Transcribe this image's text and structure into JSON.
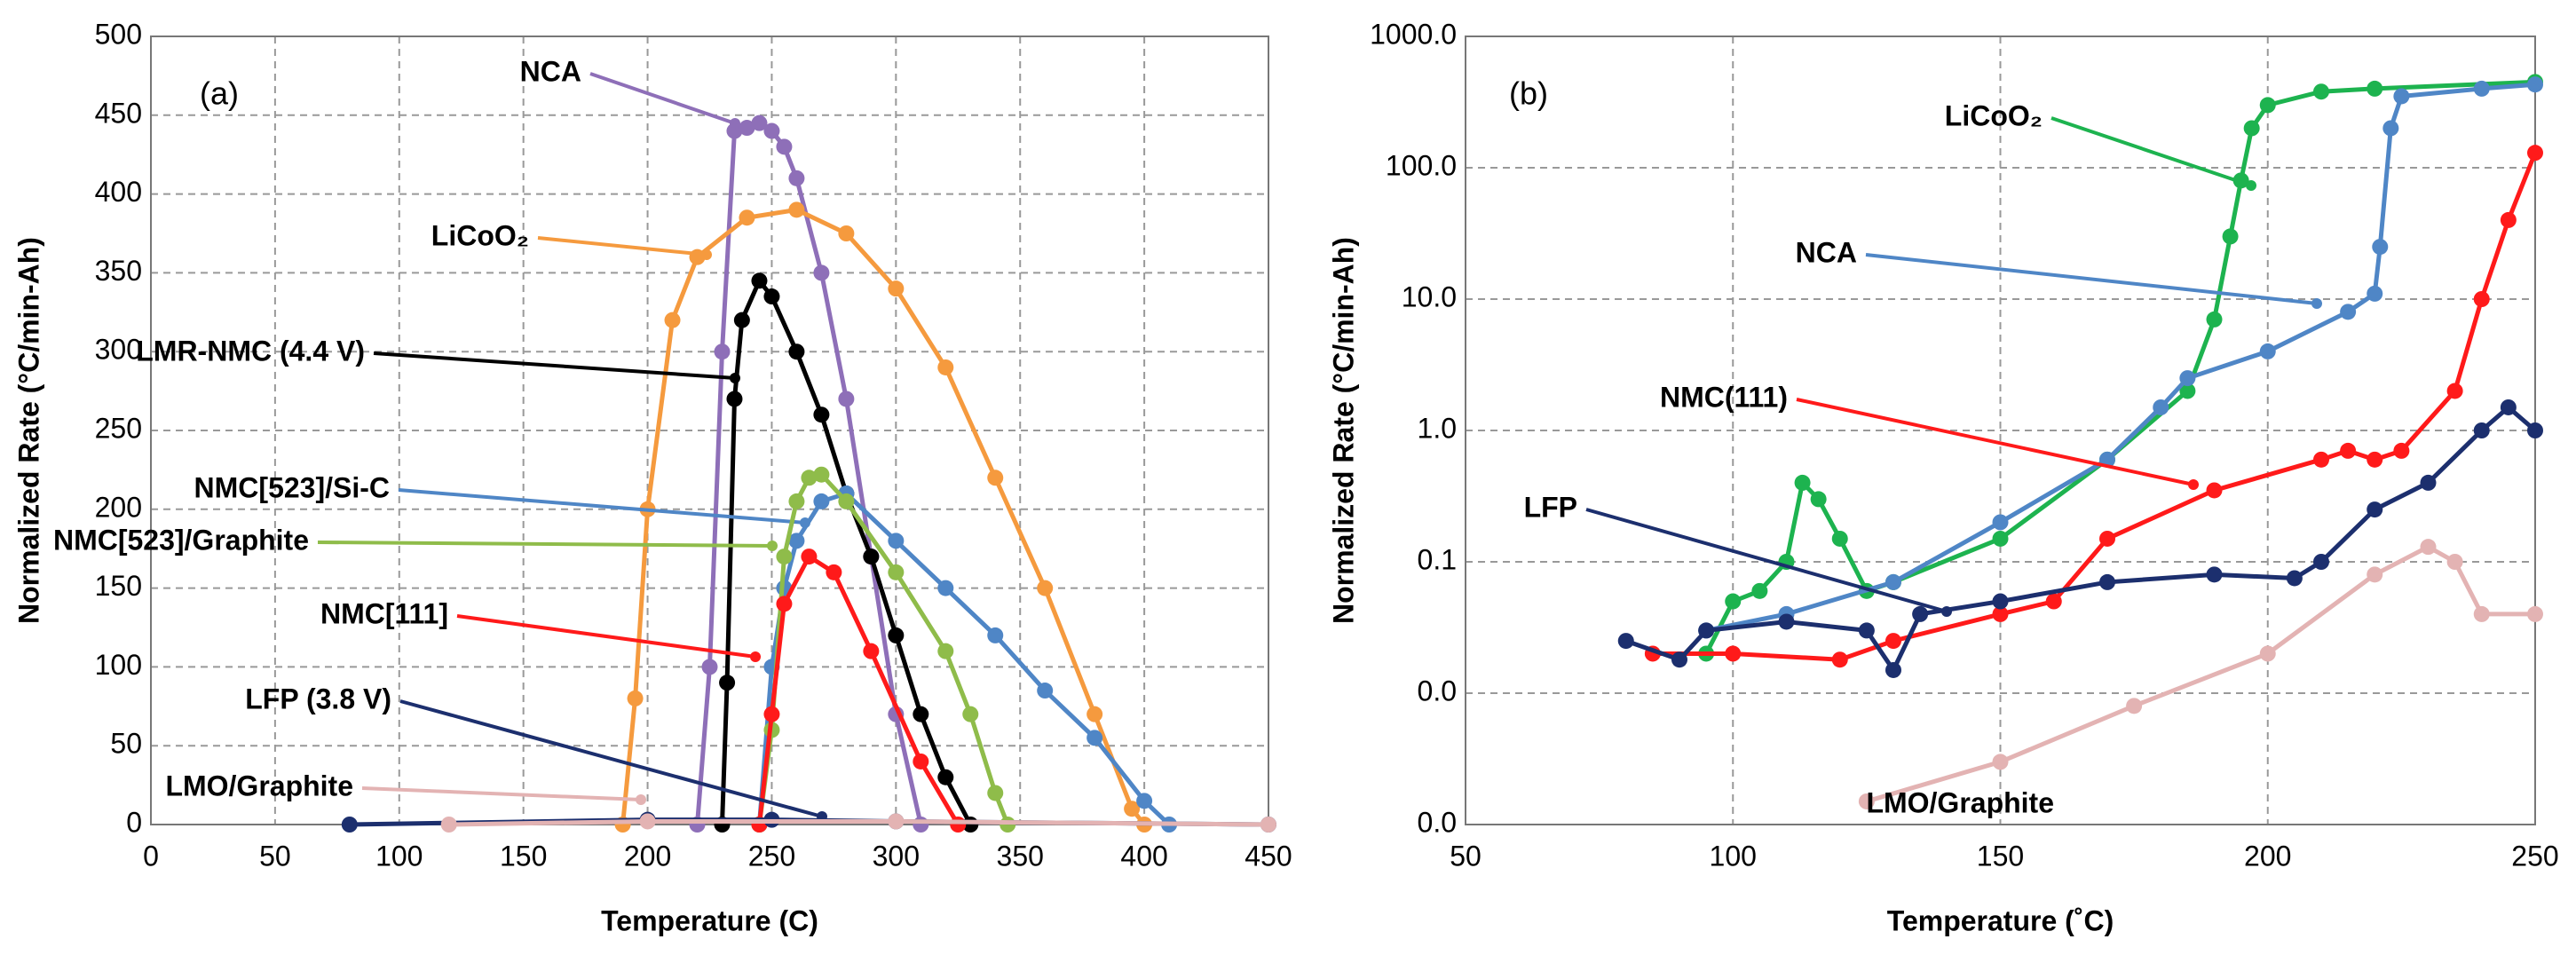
{
  "chart_data": [
    {
      "type": "line",
      "panel_label": "(a)",
      "x_label": "Temperature (C)",
      "y_label": "Normalized Rate (°C/min-Ah)",
      "xlim": [
        0,
        450
      ],
      "xticks": [
        0,
        50,
        100,
        150,
        200,
        250,
        300,
        350,
        400,
        450
      ],
      "ylim": [
        0,
        500
      ],
      "yticks": [
        0,
        50,
        100,
        150,
        200,
        250,
        300,
        350,
        400,
        450,
        500
      ],
      "grid": true,
      "log_y": false,
      "series": [
        {
          "name": "NCA",
          "color": "#8e6fb8",
          "x": [
            220,
            225,
            230,
            235,
            240,
            245,
            250,
            255,
            260,
            270,
            280,
            290,
            300,
            310
          ],
          "values": [
            0,
            100,
            300,
            440,
            442,
            445,
            440,
            430,
            410,
            350,
            270,
            170,
            70,
            0
          ]
        },
        {
          "name": "LiCoO₂",
          "color": "#f59a3e",
          "x": [
            190,
            195,
            200,
            210,
            220,
            240,
            260,
            280,
            300,
            320,
            340,
            360,
            380,
            395,
            400
          ],
          "values": [
            0,
            80,
            200,
            320,
            360,
            385,
            390,
            375,
            340,
            290,
            220,
            150,
            70,
            10,
            0
          ]
        },
        {
          "name": "LMR-NMC (4.4 V)",
          "color": "#000000",
          "x": [
            230,
            232,
            235,
            238,
            245,
            250,
            260,
            270,
            280,
            290,
            300,
            310,
            320,
            330
          ],
          "values": [
            0,
            90,
            270,
            320,
            345,
            335,
            300,
            260,
            210,
            170,
            120,
            70,
            30,
            0
          ]
        },
        {
          "name": "NMC[523]/Si-C",
          "color": "#4f86c6",
          "x": [
            245,
            250,
            255,
            260,
            270,
            280,
            300,
            320,
            340,
            360,
            380,
            400,
            410
          ],
          "values": [
            0,
            100,
            150,
            180,
            205,
            210,
            180,
            150,
            120,
            85,
            55,
            15,
            0
          ]
        },
        {
          "name": "NMC[523]/Graphite",
          "color": "#8fbc4a",
          "x": [
            245,
            250,
            255,
            260,
            265,
            270,
            280,
            300,
            320,
            330,
            340,
            345
          ],
          "values": [
            0,
            60,
            170,
            205,
            220,
            222,
            205,
            160,
            110,
            70,
            20,
            0
          ]
        },
        {
          "name": "NMC[111]",
          "color": "#ff1a1a",
          "x": [
            245,
            250,
            255,
            265,
            275,
            290,
            310,
            325
          ],
          "values": [
            0,
            70,
            140,
            170,
            160,
            110,
            40,
            0
          ]
        },
        {
          "name": "LFP (3.8 V)",
          "color": "#1c2f6e",
          "x": [
            80,
            200,
            250,
            300,
            450
          ],
          "values": [
            0,
            3,
            3,
            2,
            0
          ]
        },
        {
          "name": "LMO/Graphite",
          "color": "#e3b3b3",
          "x": [
            120,
            200,
            300,
            450
          ],
          "values": [
            0,
            2,
            2,
            0
          ]
        }
      ]
    },
    {
      "type": "line",
      "panel_label": "(b)",
      "x_label": "Temperature (˚C)",
      "y_label": "Normalized Rate (°C/min-Ah)",
      "xlim": [
        50,
        250
      ],
      "xticks": [
        50,
        100,
        150,
        200,
        250
      ],
      "ylim": [
        0.001,
        1000
      ],
      "yticks": [
        {
          "value": 0.001,
          "label": "0.0"
        },
        {
          "value": 0.01,
          "label": "0.0"
        },
        {
          "value": 0.1,
          "label": "0.1"
        },
        {
          "value": 1,
          "label": "1.0"
        },
        {
          "value": 10,
          "label": "10.0"
        },
        {
          "value": 100,
          "label": "100.0"
        },
        {
          "value": 1000,
          "label": "1000.0"
        }
      ],
      "grid": true,
      "log_y": true,
      "series": [
        {
          "name": "LiCoO₂",
          "color": "#1db34f",
          "x": [
            95,
            100,
            105,
            110,
            113,
            116,
            120,
            125,
            130,
            150,
            170,
            185,
            190,
            193,
            195,
            197,
            200,
            210,
            220,
            250
          ],
          "values": [
            0.02,
            0.05,
            0.06,
            0.1,
            0.4,
            0.3,
            0.15,
            0.06,
            0.07,
            0.15,
            0.6,
            2,
            7,
            30,
            80,
            200,
            300,
            380,
            400,
            450
          ]
        },
        {
          "name": "NCA",
          "color": "#4f86c6",
          "x": [
            95,
            110,
            130,
            150,
            170,
            180,
            185,
            200,
            215,
            220,
            221,
            223,
            225,
            240,
            250
          ],
          "values": [
            0.03,
            0.04,
            0.07,
            0.2,
            0.6,
            1.5,
            2.5,
            4,
            8,
            11,
            25,
            200,
            350,
            400,
            430
          ]
        },
        {
          "name": "NMC(111)",
          "color": "#ff1a1a",
          "x": [
            85,
            100,
            120,
            130,
            150,
            160,
            170,
            190,
            210,
            215,
            220,
            225,
            235,
            240,
            245,
            250
          ],
          "values": [
            0.02,
            0.02,
            0.018,
            0.025,
            0.04,
            0.05,
            0.15,
            0.35,
            0.6,
            0.7,
            0.6,
            0.7,
            2,
            10,
            40,
            130
          ]
        },
        {
          "name": "LFP",
          "color": "#1c2f6e",
          "x": [
            80,
            90,
            95,
            110,
            125,
            130,
            135,
            150,
            170,
            190,
            205,
            210,
            220,
            230,
            240,
            245,
            250
          ],
          "values": [
            0.025,
            0.018,
            0.03,
            0.035,
            0.03,
            0.015,
            0.04,
            0.05,
            0.07,
            0.08,
            0.075,
            0.1,
            0.25,
            0.4,
            1,
            1.5,
            1
          ]
        },
        {
          "name": "LMO/Graphite",
          "color": "#e3b3b3",
          "x": [
            125,
            150,
            175,
            200,
            220,
            230,
            235,
            240,
            250
          ],
          "values": [
            0.0015,
            0.003,
            0.008,
            0.02,
            0.08,
            0.13,
            0.1,
            0.04,
            0.04
          ]
        }
      ]
    }
  ]
}
